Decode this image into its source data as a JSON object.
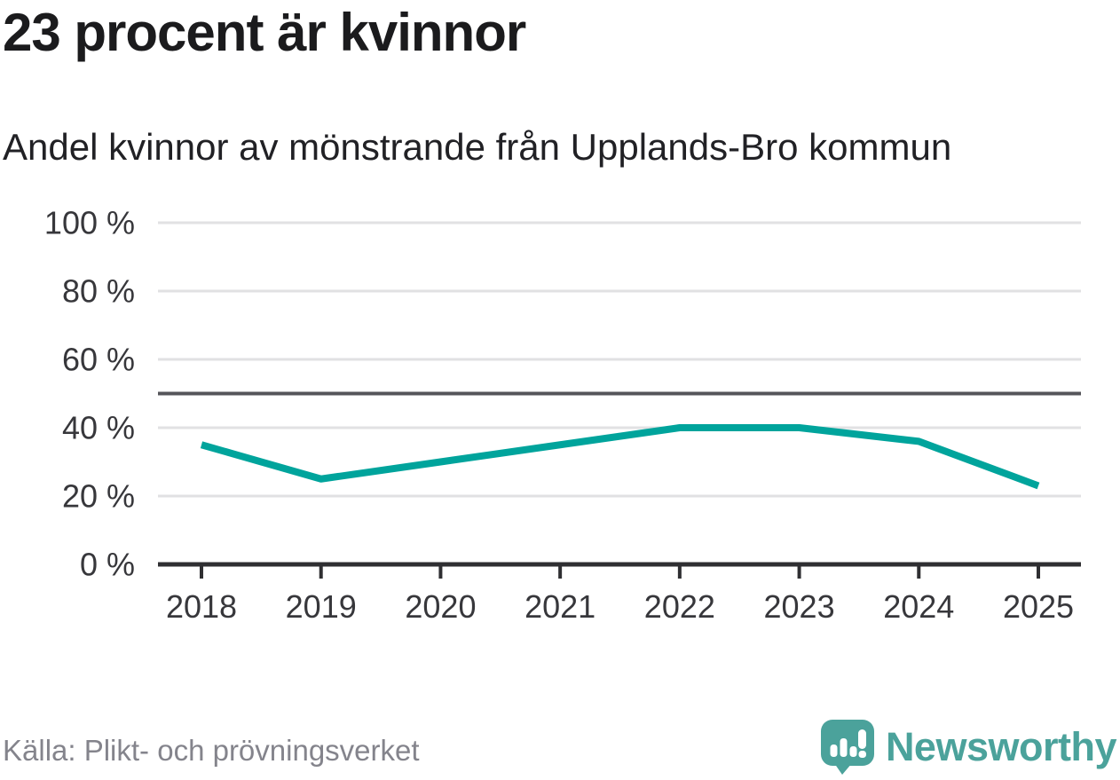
{
  "header": {
    "title": "23 procent är kvinnor",
    "subtitle": "Andel kvinnor av mönstrande från Upplands-Bro kommun"
  },
  "chart_data": {
    "type": "line",
    "title": "23 procent är kvinnor",
    "subtitle": "Andel kvinnor av mönstrande från Upplands-Bro kommun",
    "x": [
      2018,
      2019,
      2020,
      2021,
      2022,
      2023,
      2024,
      2025
    ],
    "xtick_labels": [
      "2018",
      "2019",
      "2020",
      "2021",
      "2022",
      "2023",
      "2024",
      "2025"
    ],
    "series": [
      {
        "name": "Andel kvinnor av mönstrande",
        "values": [
          35,
          25,
          30,
          35,
          40,
          40,
          36,
          23
        ]
      }
    ],
    "ylim": [
      0,
      100
    ],
    "yticks": [
      0,
      20,
      40,
      60,
      80,
      100
    ],
    "ytick_labels": [
      "0 %",
      "20 %",
      "40 %",
      "60 %",
      "80 %",
      "100 %"
    ],
    "reference_line": 50,
    "grid": true,
    "legend_position": "none",
    "xlabel": "",
    "ylabel": ""
  },
  "footer": {
    "source": "Källa: Plikt- och prövningsverket",
    "brand": "Newsworthy"
  },
  "colors": {
    "line_teal": "#00a49c",
    "brand_teal": "#4ba29b",
    "grid_gray": "#e1e1e3",
    "reference_gray": "#55555a",
    "axis_dark": "#2f2f32",
    "tick_label": "#37373b",
    "title_dark": "#1b1b1d",
    "source_gray": "#84848c"
  }
}
